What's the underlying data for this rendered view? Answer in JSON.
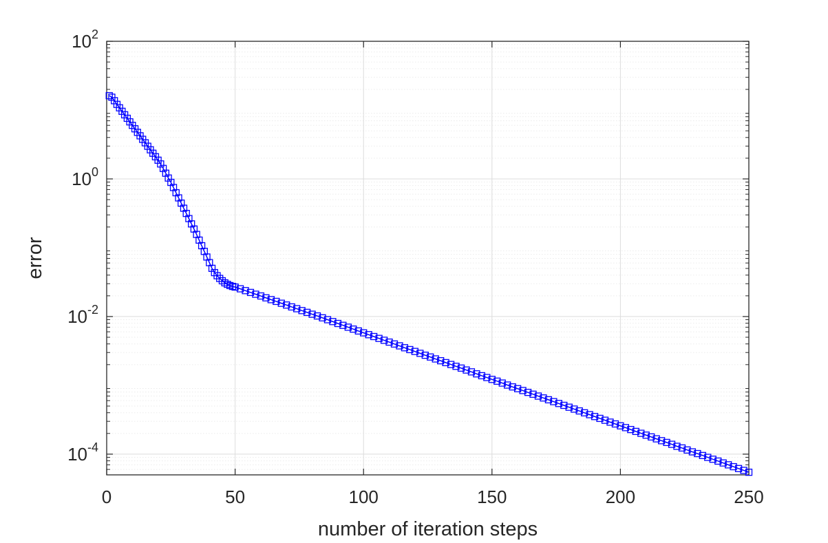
{
  "chart_data": {
    "type": "line",
    "title": "",
    "xlabel": "number of iteration steps",
    "ylabel": "error",
    "xlim": [
      0,
      250
    ],
    "ylim": [
      5e-05,
      100
    ],
    "yscale": "log",
    "grid": true,
    "minor_grid": true,
    "legend": "none",
    "x_ticks": [
      0,
      50,
      100,
      150,
      200,
      250
    ],
    "x_tick_labels": [
      "0",
      "50",
      "100",
      "150",
      "200",
      "250"
    ],
    "y_ticks": [
      0.0001,
      0.01,
      1,
      100
    ],
    "y_tick_labels": [
      {
        "base": "10",
        "exp": "-4"
      },
      {
        "base": "10",
        "exp": "-2"
      },
      {
        "base": "10",
        "exp": "0"
      },
      {
        "base": "10",
        "exp": "2"
      }
    ],
    "marker": "square",
    "colors": {
      "series": "#0000ff",
      "axes": "#262626",
      "grid": "#dcdcdc",
      "minor_grid": "#ebebeb"
    },
    "series": [
      {
        "x": [
          1,
          2,
          3,
          4,
          5,
          6,
          7,
          8,
          9,
          10,
          11,
          12,
          13,
          14,
          15,
          16,
          17,
          18,
          19,
          20,
          21,
          22,
          23,
          24,
          25,
          26,
          27,
          28,
          29,
          30,
          31,
          32,
          33,
          34,
          35,
          36,
          37,
          38,
          39,
          40,
          41,
          42,
          43,
          44,
          45,
          46,
          47,
          48,
          49,
          50,
          52,
          54,
          56,
          58,
          60,
          62,
          64,
          66,
          68,
          70,
          72,
          74,
          76,
          78,
          80,
          82,
          84,
          86,
          88,
          90,
          92,
          94,
          96,
          98,
          100,
          102,
          104,
          106,
          108,
          110,
          112,
          114,
          116,
          118,
          120,
          122,
          124,
          126,
          128,
          130,
          132,
          134,
          136,
          138,
          140,
          142,
          144,
          146,
          148,
          150,
          152,
          154,
          156,
          158,
          160,
          162,
          164,
          166,
          168,
          170,
          172,
          174,
          176,
          178,
          180,
          182,
          184,
          186,
          188,
          190,
          192,
          194,
          196,
          198,
          200,
          202,
          204,
          206,
          208,
          210,
          212,
          214,
          216,
          218,
          220,
          222,
          224,
          226,
          228,
          230,
          232,
          234,
          236,
          238,
          240,
          242,
          244,
          246,
          248,
          250
        ],
        "y": [
          16.2,
          15.4,
          13.7,
          12.1,
          10.8,
          9.6,
          8.55,
          7.6,
          6.75,
          6.0,
          5.35,
          4.75,
          4.23,
          3.76,
          3.35,
          2.98,
          2.65,
          2.36,
          2.1,
          1.87,
          1.65,
          1.42,
          1.21,
          1.03,
          0.89,
          0.75,
          0.63,
          0.53,
          0.445,
          0.375,
          0.315,
          0.265,
          0.222,
          0.187,
          0.156,
          0.129,
          0.107,
          0.0885,
          0.0733,
          0.0607,
          0.0502,
          0.0435,
          0.0392,
          0.0358,
          0.0331,
          0.0309,
          0.0294,
          0.0282,
          0.0274,
          0.0268,
          0.0253,
          0.0238,
          0.0224,
          0.0211,
          0.0199,
          0.0187,
          0.0176,
          0.0166,
          0.0156,
          0.0147,
          0.0138,
          0.013,
          0.0122,
          0.0115,
          0.0108,
          0.0102,
          0.00958,
          0.009,
          0.00845,
          0.00793,
          0.00745,
          0.007,
          0.00657,
          0.00617,
          0.0058,
          0.00545,
          0.00512,
          0.00481,
          0.00452,
          0.00425,
          0.00399,
          0.00375,
          0.00352,
          0.00331,
          0.00311,
          0.00292,
          0.00274,
          0.00258,
          0.00242,
          0.00228,
          0.00214,
          0.00201,
          0.00189,
          0.00178,
          0.00167,
          0.00157,
          0.00147,
          0.00138,
          0.0013,
          0.00122,
          0.00115,
          0.00108,
          0.00101,
          0.00095,
          0.000895,
          0.000841,
          0.00079,
          0.000743,
          0.000698,
          0.000656,
          0.000617,
          0.00058,
          0.000545,
          0.000512,
          0.000481,
          0.000452,
          0.000425,
          0.000399,
          0.000375,
          0.000352,
          0.000331,
          0.000311,
          0.000292,
          0.000275,
          0.000258,
          0.000243,
          0.000228,
          0.000214,
          0.000201,
          0.000189,
          0.000178,
          0.000167,
          0.000157,
          0.000148,
          0.000139,
          0.00013,
          0.000123,
          0.000115,
          0.000108,
          0.000102,
          9.56e-05,
          8.98e-05,
          8.44e-05,
          7.93e-05,
          7.45e-05,
          7e-05,
          6.58e-05,
          6.18e-05,
          5.81e-05,
          5.46e-05
        ]
      }
    ]
  }
}
